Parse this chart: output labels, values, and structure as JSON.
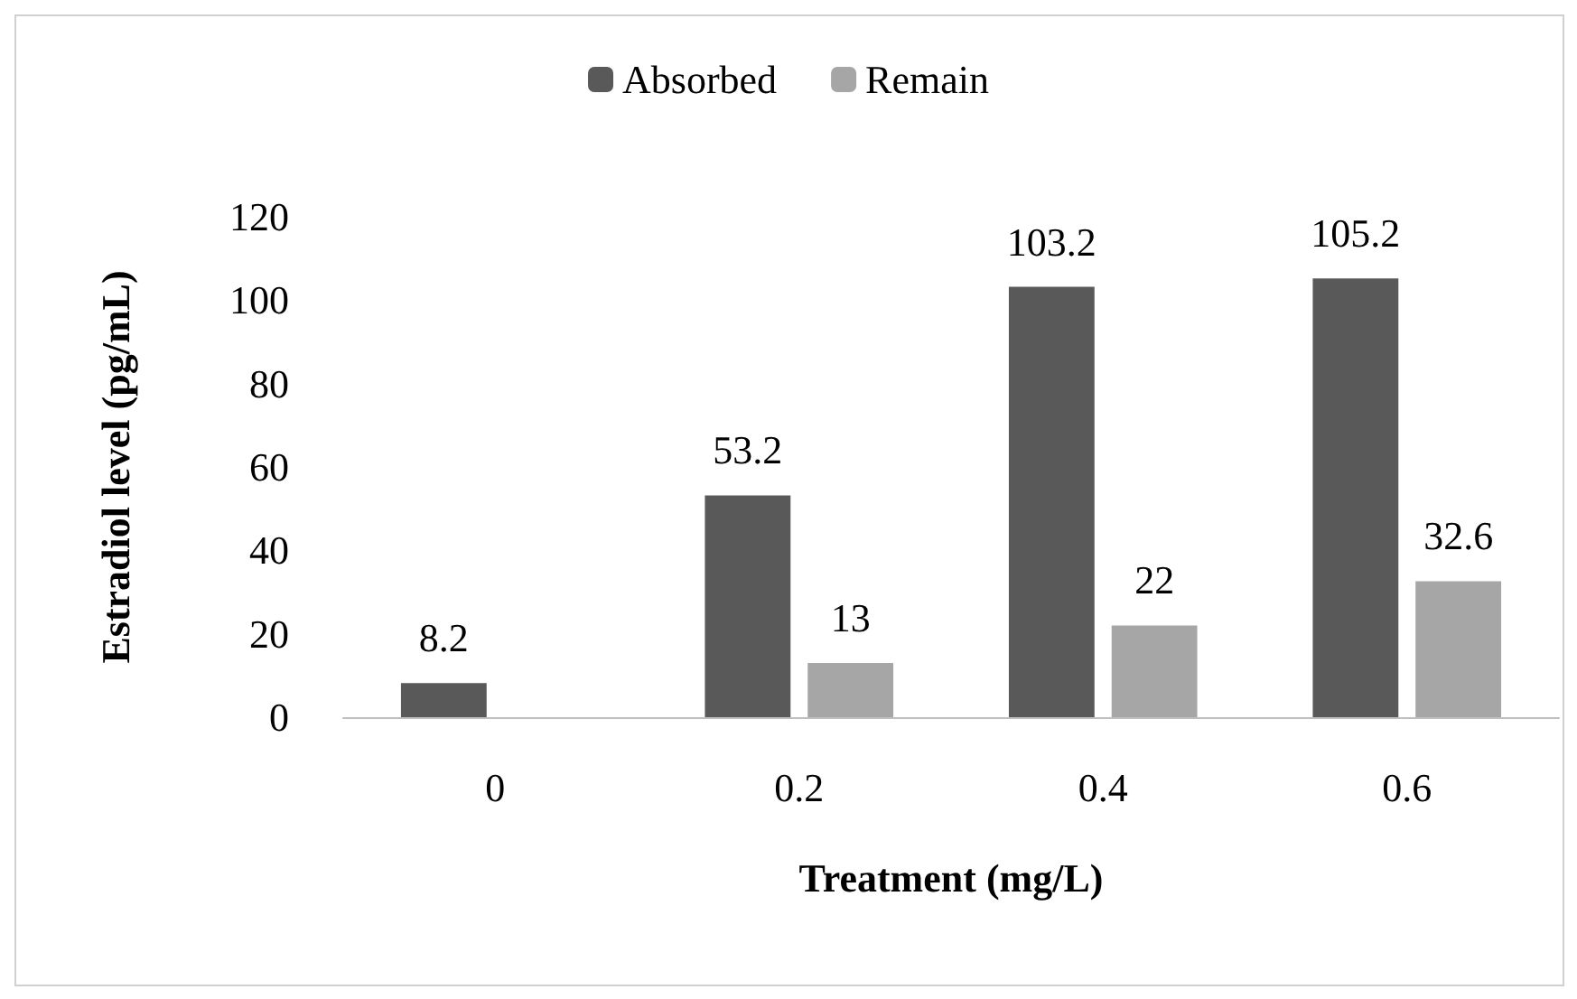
{
  "chart_data": {
    "type": "bar",
    "xlabel": "Treatment (mg/L)",
    "ylabel": "Estradiol level (pg/mL)",
    "categories": [
      "0",
      "0.2",
      "0.4",
      "0.6"
    ],
    "series": [
      {
        "name": "Absorbed",
        "color": "#595959",
        "values": [
          8.2,
          53.2,
          103.2,
          105.2
        ]
      },
      {
        "name": "Remain",
        "color": "#a6a6a6",
        "values": [
          null,
          13,
          22,
          32.6
        ]
      }
    ],
    "ylim": [
      0,
      120
    ],
    "yticks": [
      0,
      20,
      40,
      60,
      80,
      100,
      120
    ],
    "grid": false,
    "legend": "top",
    "data_labels": true
  }
}
